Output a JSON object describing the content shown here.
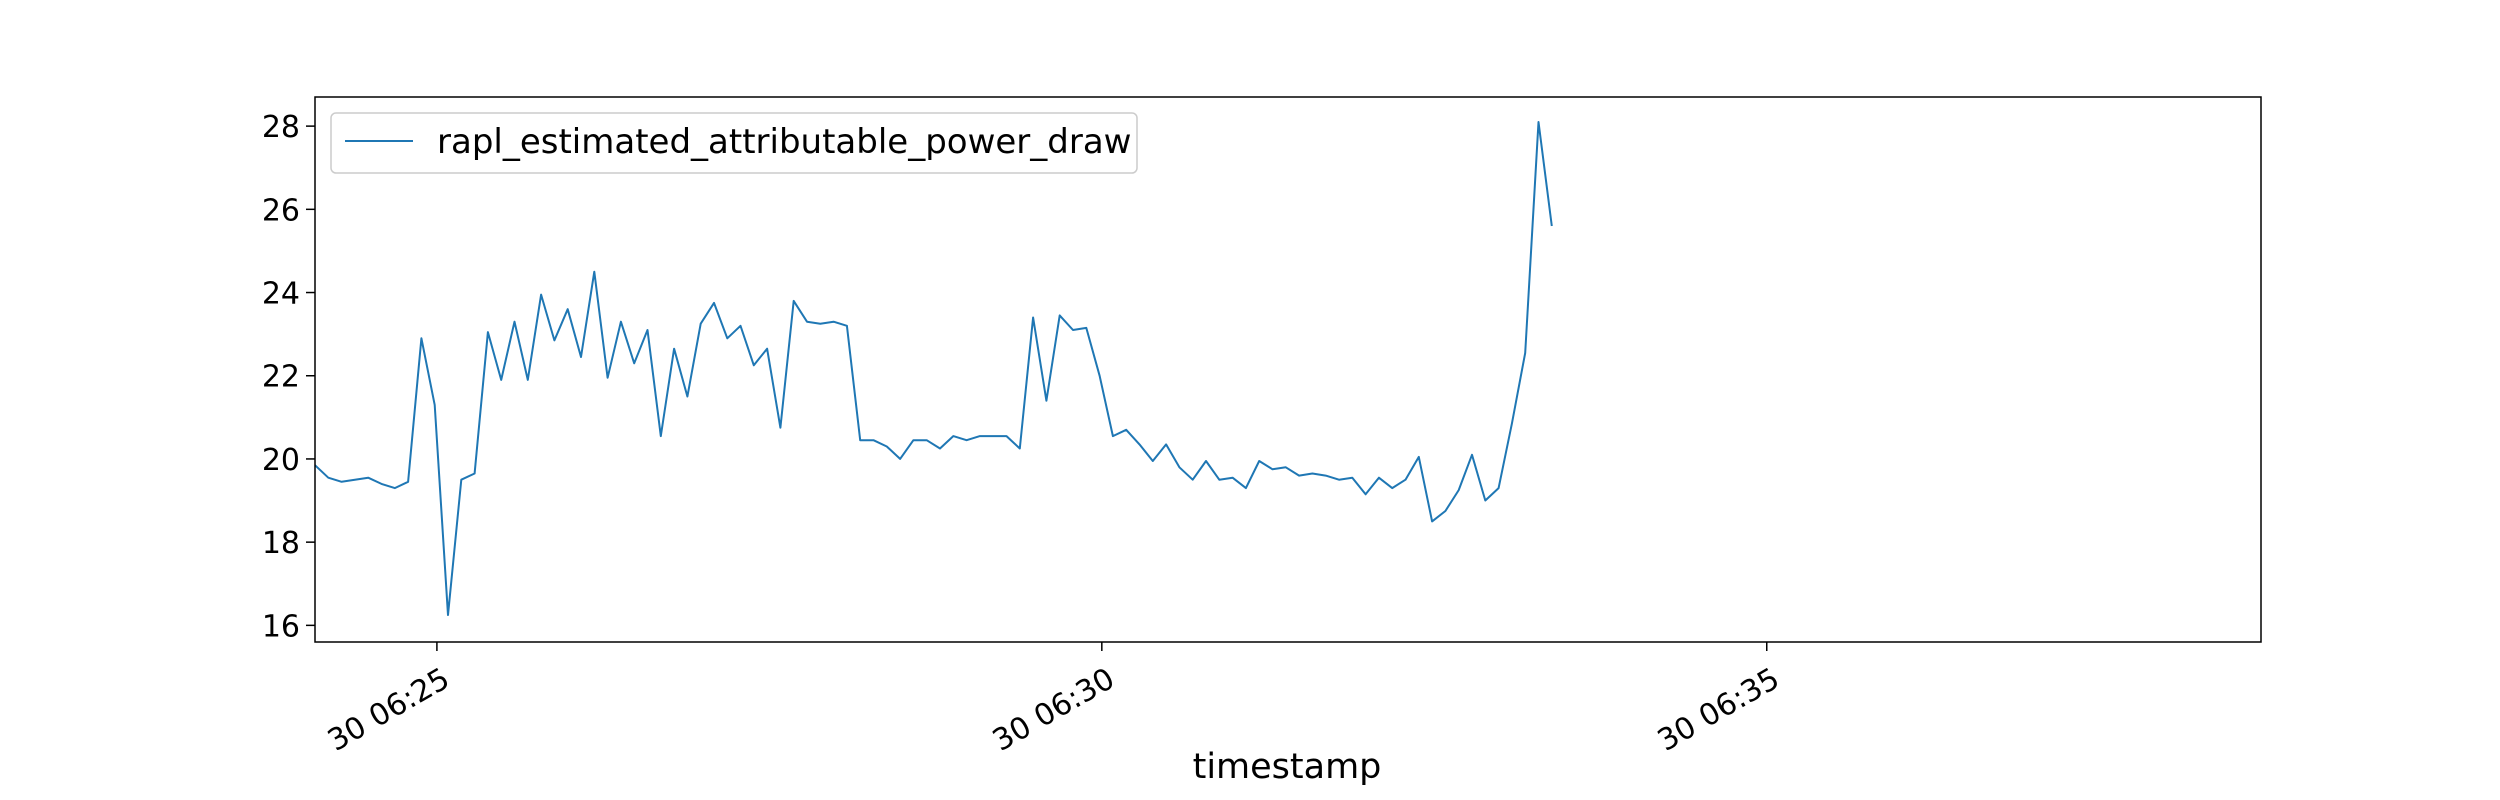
{
  "chart_data": {
    "type": "line",
    "title": "",
    "xlabel": "timestamp",
    "ylabel": "",
    "x_start": "06:24:05",
    "x_step_seconds": 6,
    "xlim": [
      "06:24:05",
      "06:38:43"
    ],
    "x_ticks": [
      {
        "time": "06:25:00",
        "label": "30 06:25"
      },
      {
        "time": "06:30:00",
        "label": "30 06:30"
      },
      {
        "time": "06:35:00",
        "label": "30 06:35"
      }
    ],
    "ylim": [
      15.6,
      28.7
    ],
    "y_ticks": [
      16,
      18,
      20,
      22,
      24,
      26,
      28
    ],
    "grid": false,
    "legend": {
      "placement": "top-left",
      "entries": [
        "rapl_estimated_attributable_power_draw"
      ]
    },
    "series": [
      {
        "name": "rapl_estimated_attributable_power_draw",
        "color": "#1f77b4",
        "values": [
          19.85,
          19.55,
          19.45,
          19.5,
          19.55,
          19.4,
          19.3,
          19.45,
          22.9,
          21.3,
          16.25,
          19.5,
          19.65,
          23.05,
          21.9,
          23.3,
          21.9,
          23.95,
          22.85,
          23.6,
          22.45,
          24.5,
          21.95,
          23.3,
          22.3,
          23.1,
          20.55,
          22.65,
          21.5,
          23.25,
          23.75,
          22.9,
          23.2,
          22.25,
          22.65,
          20.75,
          23.8,
          23.3,
          23.25,
          23.3,
          23.2,
          20.45,
          20.45,
          20.3,
          20.0,
          20.45,
          20.45,
          20.25,
          20.55,
          20.45,
          20.55,
          20.55,
          20.55,
          20.25,
          23.4,
          21.4,
          23.45,
          23.1,
          23.15,
          22.0,
          20.55,
          20.7,
          20.35,
          19.95,
          20.35,
          19.8,
          19.5,
          19.95,
          19.5,
          19.55,
          19.3,
          19.95,
          19.75,
          19.8,
          19.6,
          19.65,
          19.6,
          19.5,
          19.55,
          19.15,
          19.55,
          19.3,
          19.5,
          20.05,
          18.5,
          18.75,
          19.25,
          20.1,
          19.0,
          19.3,
          20.85,
          22.55,
          28.1,
          25.6
        ]
      }
    ]
  }
}
